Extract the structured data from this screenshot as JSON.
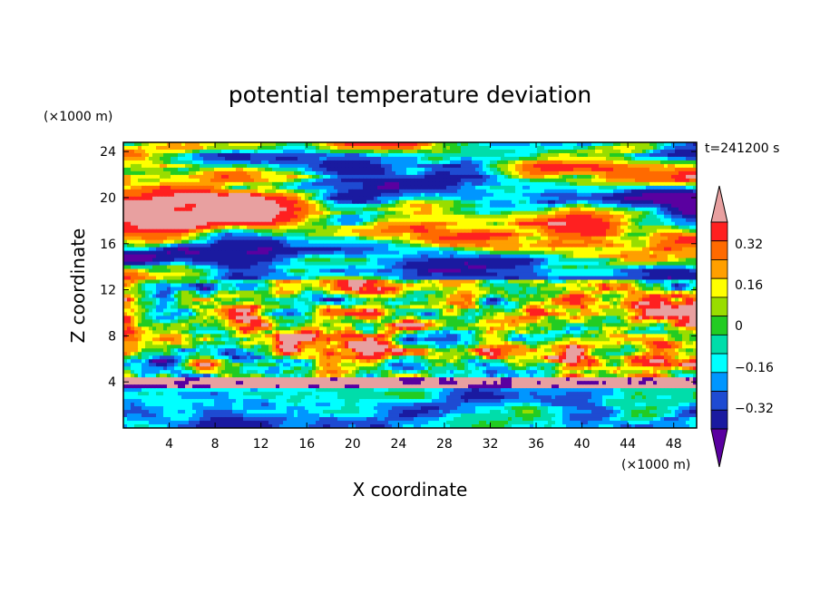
{
  "chart_data": {
    "type": "heatmap",
    "title": "potential temperature deviation",
    "xlabel": "X coordinate",
    "ylabel": "Z coordinate",
    "x_unit": "(×1000 m)",
    "y_unit": "(×1000 m)",
    "time_label": "t=241200 s",
    "xlim": [
      0,
      50
    ],
    "ylim": [
      0,
      24.8
    ],
    "x_ticks": [
      "4",
      "8",
      "12",
      "16",
      "20",
      "24",
      "28",
      "32",
      "36",
      "40",
      "44",
      "48"
    ],
    "y_ticks": [
      "4",
      "8",
      "12",
      "16",
      "20",
      "24"
    ],
    "colorbar": {
      "levels": [
        -0.4,
        -0.32,
        -0.24,
        -0.16,
        -0.08,
        0,
        0.08,
        0.16,
        0.24,
        0.32,
        0.4
      ],
      "tick_labels": [
        "0.32",
        "0.16",
        "0",
        "−0.16",
        "−0.32"
      ],
      "colors": [
        "#e8a0a0",
        "#ff2020",
        "#ff6a00",
        "#ff9f00",
        "#ffff00",
        "#99dd00",
        "#22cc22",
        "#00ddaa",
        "#00ffff",
        "#0096ff",
        "#1e4bd2",
        "#1a1aa0",
        "#5a00a0"
      ],
      "extend": "both"
    },
    "field_description_levels": {
      "top_band_z": [
        13,
        24.8
      ],
      "top_band_dominant": [
        "#e8a0a0",
        "#5a00a0"
      ],
      "middle_band_z": [
        4.5,
        13
      ],
      "bottom_band_z": [
        0,
        4
      ]
    }
  }
}
